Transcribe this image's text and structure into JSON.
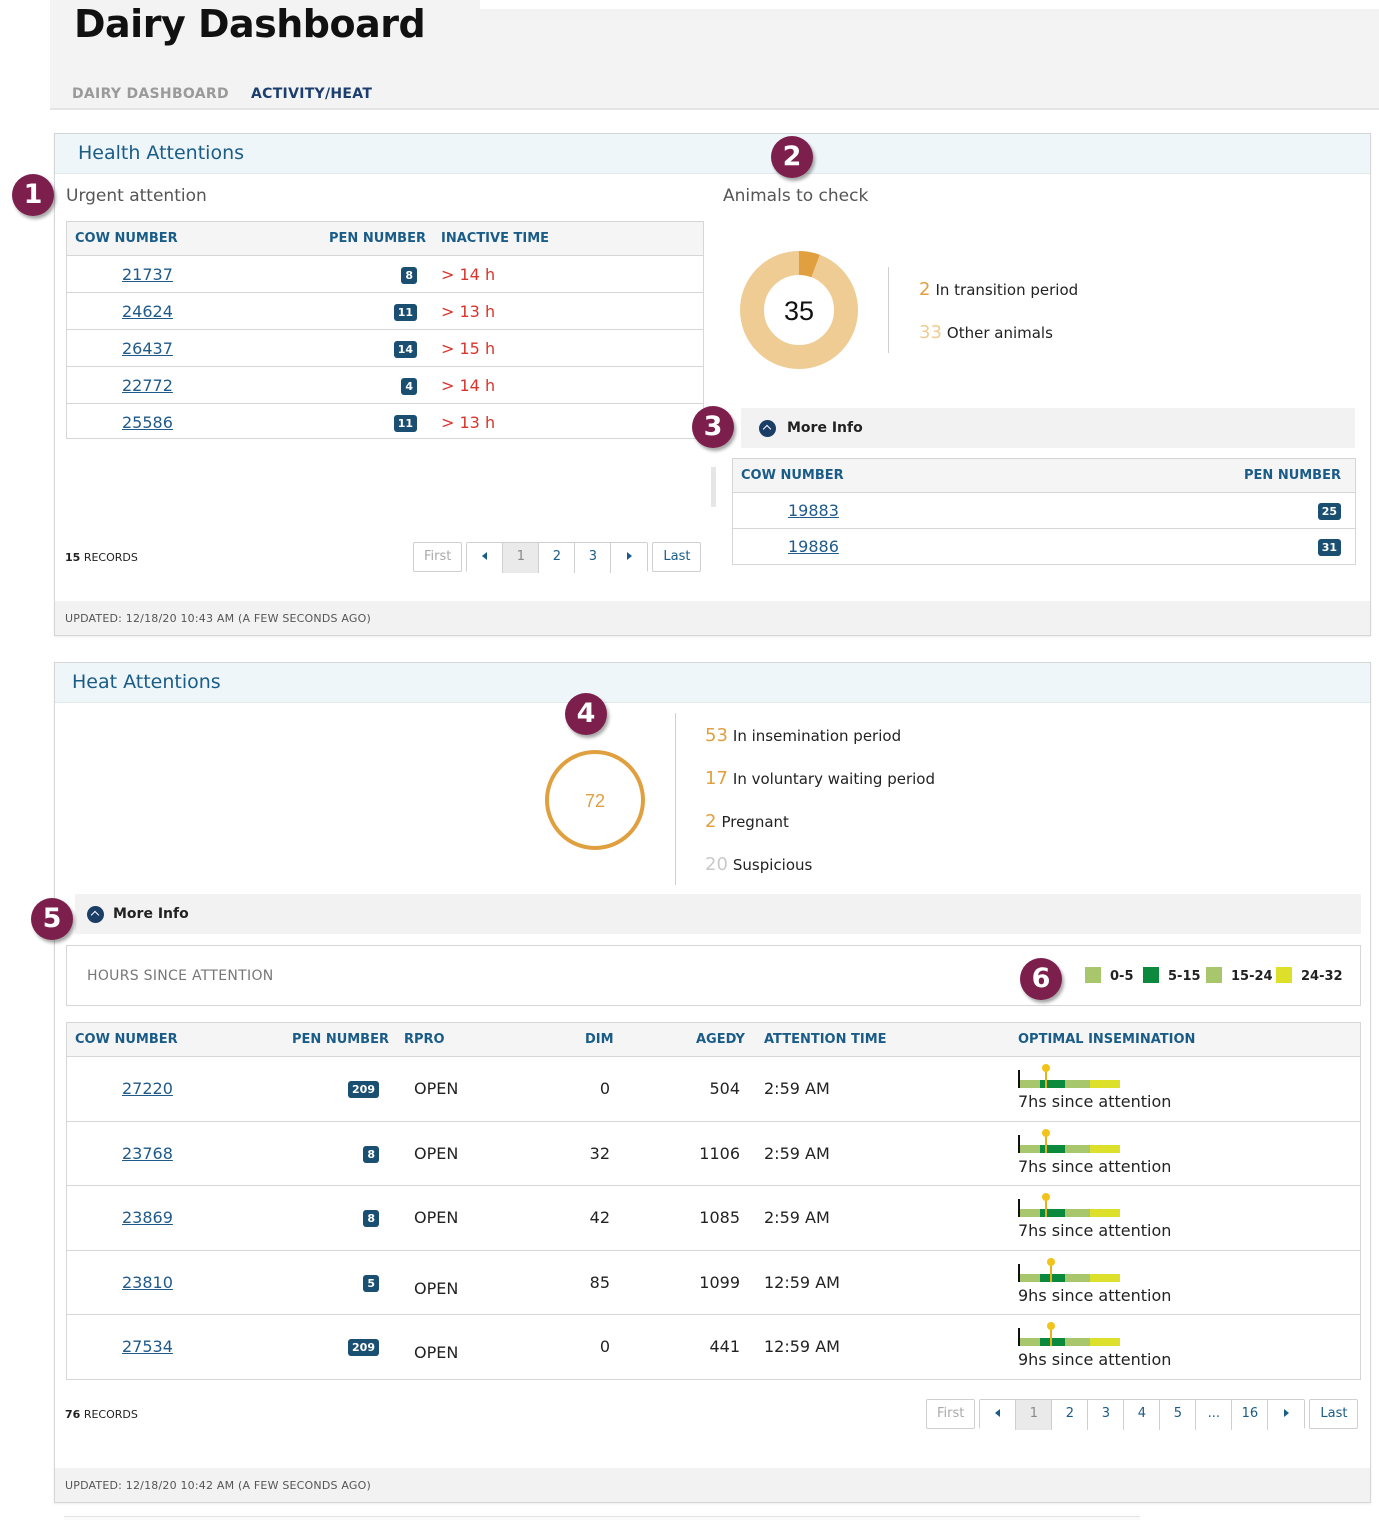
{
  "header": {
    "title": "Dairy Dashboard",
    "tabs": [
      {
        "label": "DAIRY DASHBOARD"
      },
      {
        "label": "ACTIVITY/HEAT"
      }
    ]
  },
  "callouts": [
    "1",
    "2",
    "3",
    "4",
    "5",
    "6"
  ],
  "health": {
    "title": "Health Attentions",
    "urgent": {
      "title": "Urgent attention",
      "columns": [
        "COW NUMBER",
        "PEN NUMBER",
        "INACTIVE TIME"
      ],
      "rows": [
        {
          "cow": "21737",
          "pen": "8",
          "time": "> 14 h"
        },
        {
          "cow": "24624",
          "pen": "11",
          "time": "> 13 h"
        },
        {
          "cow": "26437",
          "pen": "14",
          "time": "> 15 h"
        },
        {
          "cow": "22772",
          "pen": "4",
          "time": "> 14 h"
        },
        {
          "cow": "25586",
          "pen": "11",
          "time": "> 13 h"
        }
      ],
      "records_count": "15",
      "records_label": "RECORDS",
      "pager": {
        "first": "First",
        "pages": [
          "1",
          "2",
          "3"
        ],
        "last": "Last"
      }
    },
    "check": {
      "title": "Animals to check",
      "total": "35",
      "stats": [
        {
          "value": "2",
          "label": "In transition period"
        },
        {
          "value": "33",
          "label": "Other animals"
        }
      ],
      "more_info": "More Info",
      "columns": [
        "COW NUMBER",
        "PEN NUMBER"
      ],
      "rows": [
        {
          "cow": "19883",
          "pen": "25"
        },
        {
          "cow": "19886",
          "pen": "31"
        }
      ]
    },
    "updated": "UPDATED: 12/18/20 10:43 AM (A FEW SECONDS AGO)"
  },
  "heat": {
    "title": "Heat Attentions",
    "total": "72",
    "stats": [
      {
        "value": "53",
        "label": "In insemination period"
      },
      {
        "value": "17",
        "label": "In voluntary waiting period"
      },
      {
        "value": "2",
        "label": "Pregnant"
      },
      {
        "value": "20",
        "label": "Suspicious"
      }
    ],
    "more_info": "More Info",
    "hours_label": "HOURS SINCE ATTENTION",
    "legend": [
      {
        "label": "0-5",
        "color": "#a8c66c"
      },
      {
        "label": "5-15",
        "color": "#0b8a3e"
      },
      {
        "label": "15-24",
        "color": "#a8c66c"
      },
      {
        "label": "24-32",
        "color": "#dde02a"
      }
    ],
    "columns": [
      "COW NUMBER",
      "PEN NUMBER",
      "RPRO",
      "DIM",
      "AGEDY",
      "ATTENTION TIME",
      "OPTIMAL INSEMINATION"
    ],
    "rows": [
      {
        "cow": "27220",
        "pen": "209",
        "rpro": "OPEN",
        "dim": "0",
        "agedy": "504",
        "time": "2:59 AM",
        "hours_since": 7,
        "since": "7hs since attention"
      },
      {
        "cow": "23768",
        "pen": "8",
        "rpro": "OPEN",
        "dim": "32",
        "agedy": "1106",
        "time": "2:59 AM",
        "hours_since": 7,
        "since": "7hs since attention"
      },
      {
        "cow": "23869",
        "pen": "8",
        "rpro": "OPEN",
        "dim": "42",
        "agedy": "1085",
        "time": "2:59 AM",
        "hours_since": 7,
        "since": "7hs since attention"
      },
      {
        "cow": "23810",
        "pen": "5",
        "rpro": "OPEN",
        "dim": "85",
        "agedy": "1099",
        "time": "12:59 AM",
        "hours_since": 9,
        "since": "9hs since attention"
      },
      {
        "cow": "27534",
        "pen": "209",
        "rpro": "OPEN",
        "dim": "0",
        "agedy": "441",
        "time": "12:59 AM",
        "hours_since": 9,
        "since": "9hs since attention"
      }
    ],
    "records_count": "76",
    "records_label": "RECORDS",
    "pager": {
      "first": "First",
      "pages": [
        "1",
        "2",
        "3",
        "4",
        "5",
        "...",
        "16"
      ],
      "last": "Last"
    },
    "updated": "UPDATED: 12/18/20 10:42 AM (A FEW SECONDS AGO)"
  }
}
